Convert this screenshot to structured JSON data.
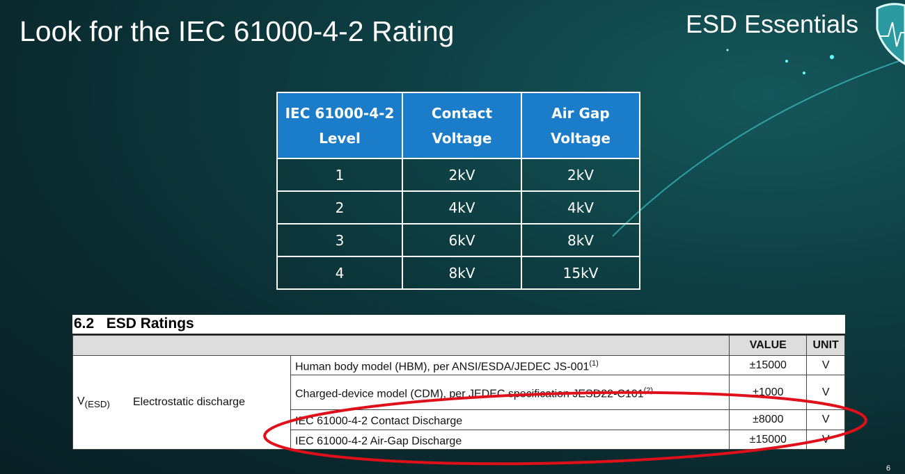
{
  "slide": {
    "title": "Look for the IEC 61000-4-2 Rating",
    "brand": "ESD Essentials",
    "page_number": "6",
    "logo": "shield-heartbeat-icon"
  },
  "iec_table": {
    "headers": [
      "IEC 61000-4-2 Level",
      "Contact Voltage",
      "Air Gap Voltage"
    ],
    "rows": [
      [
        "1",
        "2kV",
        "2kV"
      ],
      [
        "2",
        "4kV",
        "4kV"
      ],
      [
        "3",
        "6kV",
        "8kV"
      ],
      [
        "4",
        "8kV",
        "15kV"
      ]
    ],
    "header_color": "#1b7cc9"
  },
  "esd_ratings": {
    "heading": "6.2   ESD Ratings",
    "col_value": "VALUE",
    "col_unit": "UNIT",
    "symbol": "V",
    "symbol_sub": "(ESD)",
    "parameter": "Electrostatic discharge",
    "rows": [
      {
        "condition": "Human body model (HBM), per ANSI/ESDA/JEDEC JS-001",
        "note": "(1)",
        "value": "±15000",
        "unit": "V"
      },
      {
        "condition": "Charged-device model (CDM), per JEDEC specification JESD22-C101",
        "note": "(2)",
        "value": "±1000",
        "unit": "V"
      },
      {
        "condition": "IEC 61000-4-2 Contact Discharge",
        "note": "",
        "value": "±8000",
        "unit": "V"
      },
      {
        "condition": "IEC 61000-4-2 Air-Gap Discharge",
        "note": "",
        "value": "±15000",
        "unit": "V"
      }
    ],
    "highlight_color": "#e0101a"
  }
}
